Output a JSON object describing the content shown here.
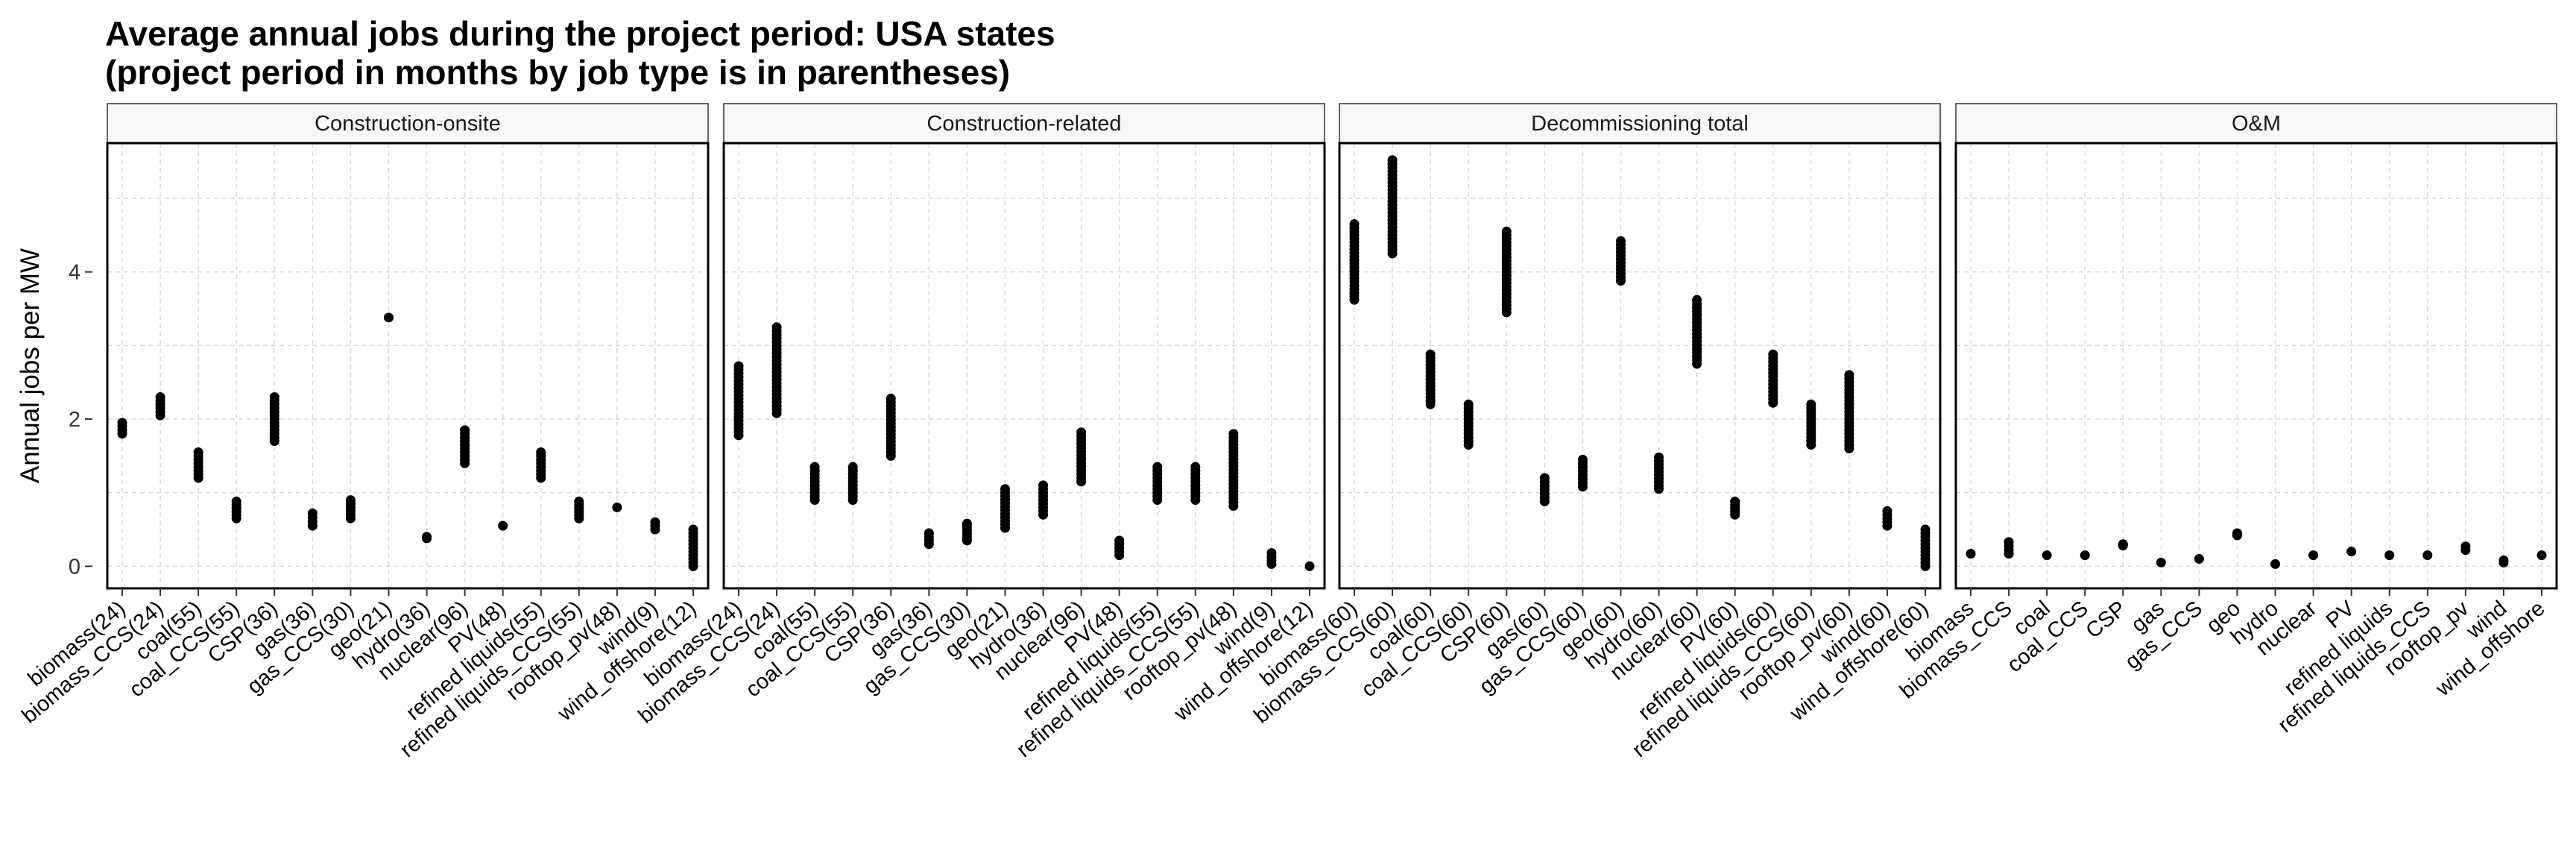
{
  "title_line1": "Average annual jobs during the project period: USA states",
  "title_line2": "(project period in months by job type is in parentheses)",
  "chart_data": {
    "type": "scatter",
    "ylabel": "Annual jobs per MW",
    "xlabel": "",
    "ylim": [
      -0.3,
      5.75
    ],
    "yticks": [
      0,
      2,
      4
    ],
    "grid": true,
    "panels": [
      {
        "name": "Construction-onsite",
        "categories": [
          "biomass(24)",
          "biomass_CCS(24)",
          "coal(55)",
          "coal_CCS(55)",
          "CSP(36)",
          "gas(36)",
          "gas_CCS(30)",
          "geo(21)",
          "hydro(36)",
          "nuclear(96)",
          "PV(48)",
          "refined liquids(55)",
          "refined liquids_CCS(55)",
          "rooftop_pv(48)",
          "wind(9)",
          "wind_offshore(12)"
        ],
        "ranges": [
          [
            1.8,
            1.95
          ],
          [
            2.05,
            2.3
          ],
          [
            1.2,
            1.55
          ],
          [
            0.65,
            0.88
          ],
          [
            1.7,
            2.3
          ],
          [
            0.55,
            0.72
          ],
          [
            0.65,
            0.9
          ],
          [
            3.38,
            3.38
          ],
          [
            0.38,
            0.4
          ],
          [
            1.4,
            1.85
          ],
          [
            0.55,
            0.55
          ],
          [
            1.2,
            1.55
          ],
          [
            0.65,
            0.88
          ],
          [
            0.8,
            0.8
          ],
          [
            0.5,
            0.6
          ],
          [
            0.0,
            0.5
          ]
        ]
      },
      {
        "name": "Construction-related",
        "categories": [
          "biomass(24)",
          "biomass_CCS(24)",
          "coal(55)",
          "coal_CCS(55)",
          "CSP(36)",
          "gas(36)",
          "gas_CCS(30)",
          "geo(21)",
          "hydro(36)",
          "nuclear(96)",
          "PV(48)",
          "refined liquids(55)",
          "refined liquids_CCS(55)",
          "rooftop_pv(48)",
          "wind(9)",
          "wind_offshore(12)"
        ],
        "ranges": [
          [
            1.78,
            2.72
          ],
          [
            2.08,
            3.25
          ],
          [
            0.9,
            1.35
          ],
          [
            0.9,
            1.35
          ],
          [
            1.5,
            2.28
          ],
          [
            0.3,
            0.45
          ],
          [
            0.35,
            0.58
          ],
          [
            0.52,
            1.05
          ],
          [
            0.7,
            1.1
          ],
          [
            1.15,
            1.82
          ],
          [
            0.15,
            0.35
          ],
          [
            0.9,
            1.35
          ],
          [
            0.9,
            1.35
          ],
          [
            0.82,
            1.8
          ],
          [
            0.03,
            0.18
          ],
          [
            0.0,
            0.0
          ]
        ]
      },
      {
        "name": "Decommissioning total",
        "categories": [
          "biomass(60)",
          "biomass_CCS(60)",
          "coal(60)",
          "coal_CCS(60)",
          "CSP(60)",
          "gas(60)",
          "gas_CCS(60)",
          "geo(60)",
          "hydro(60)",
          "nuclear(60)",
          "PV(60)",
          "refined liquids(60)",
          "refined liquids_CCS(60)",
          "rooftop_pv(60)",
          "wind(60)",
          "wind_offshore(60)"
        ],
        "ranges": [
          [
            3.62,
            4.65
          ],
          [
            4.25,
            5.52
          ],
          [
            2.2,
            2.88
          ],
          [
            1.65,
            2.2
          ],
          [
            3.45,
            4.55
          ],
          [
            0.88,
            1.2
          ],
          [
            1.08,
            1.45
          ],
          [
            3.88,
            4.42
          ],
          [
            1.05,
            1.48
          ],
          [
            2.75,
            3.62
          ],
          [
            0.7,
            0.88
          ],
          [
            2.22,
            2.88
          ],
          [
            1.65,
            2.2
          ],
          [
            1.6,
            2.6
          ],
          [
            0.55,
            0.75
          ],
          [
            0.0,
            0.5
          ]
        ]
      },
      {
        "name": "O&M",
        "categories": [
          "biomass",
          "biomass_CCS",
          "coal",
          "coal_CCS",
          "CSP",
          "gas",
          "gas_CCS",
          "geo",
          "hydro",
          "nuclear",
          "PV",
          "refined liquids",
          "refined liquids_CCS",
          "rooftop_pv",
          "wind",
          "wind_offshore"
        ],
        "ranges": [
          [
            0.17,
            0.17
          ],
          [
            0.17,
            0.33
          ],
          [
            0.15,
            0.15
          ],
          [
            0.15,
            0.15
          ],
          [
            0.28,
            0.3
          ],
          [
            0.05,
            0.05
          ],
          [
            0.1,
            0.1
          ],
          [
            0.42,
            0.45
          ],
          [
            0.03,
            0.03
          ],
          [
            0.15,
            0.15
          ],
          [
            0.2,
            0.2
          ],
          [
            0.15,
            0.15
          ],
          [
            0.15,
            0.15
          ],
          [
            0.22,
            0.27
          ],
          [
            0.05,
            0.08
          ],
          [
            0.15,
            0.15
          ]
        ]
      }
    ]
  }
}
